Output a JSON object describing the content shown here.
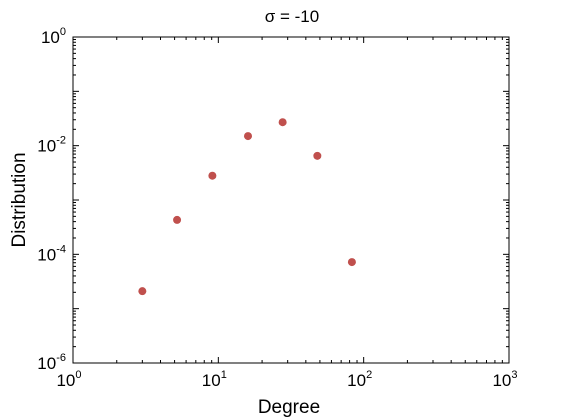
{
  "chart_data": {
    "type": "scatter",
    "title": "σ = -10",
    "xlabel": "Degree",
    "ylabel": "Distribution",
    "xscale": "log",
    "yscale": "log",
    "xlim": [
      1,
      1000
    ],
    "ylim": [
      1e-06,
      1
    ],
    "grid": false,
    "x_ticks": [
      {
        "base": "10",
        "exp": "0",
        "value": 1
      },
      {
        "base": "10",
        "exp": "1",
        "value": 10
      },
      {
        "base": "10",
        "exp": "2",
        "value": 100
      },
      {
        "base": "10",
        "exp": "3",
        "value": 1000
      }
    ],
    "y_ticks": [
      {
        "base": "10",
        "exp": "0",
        "value": 1
      },
      {
        "base": "10",
        "exp": "-2",
        "value": 0.01
      },
      {
        "base": "10",
        "exp": "-4",
        "value": 0.0001
      },
      {
        "base": "10",
        "exp": "-6",
        "value": 1e-06
      }
    ],
    "marker_color": "#c0504d",
    "series": [
      {
        "x": [
          3,
          5.2,
          9.1,
          16,
          27.7,
          48,
          83
        ],
        "y": [
          2.1e-05,
          0.00043,
          0.0028,
          0.015,
          0.027,
          0.0065,
          7.2e-05
        ]
      }
    ]
  }
}
